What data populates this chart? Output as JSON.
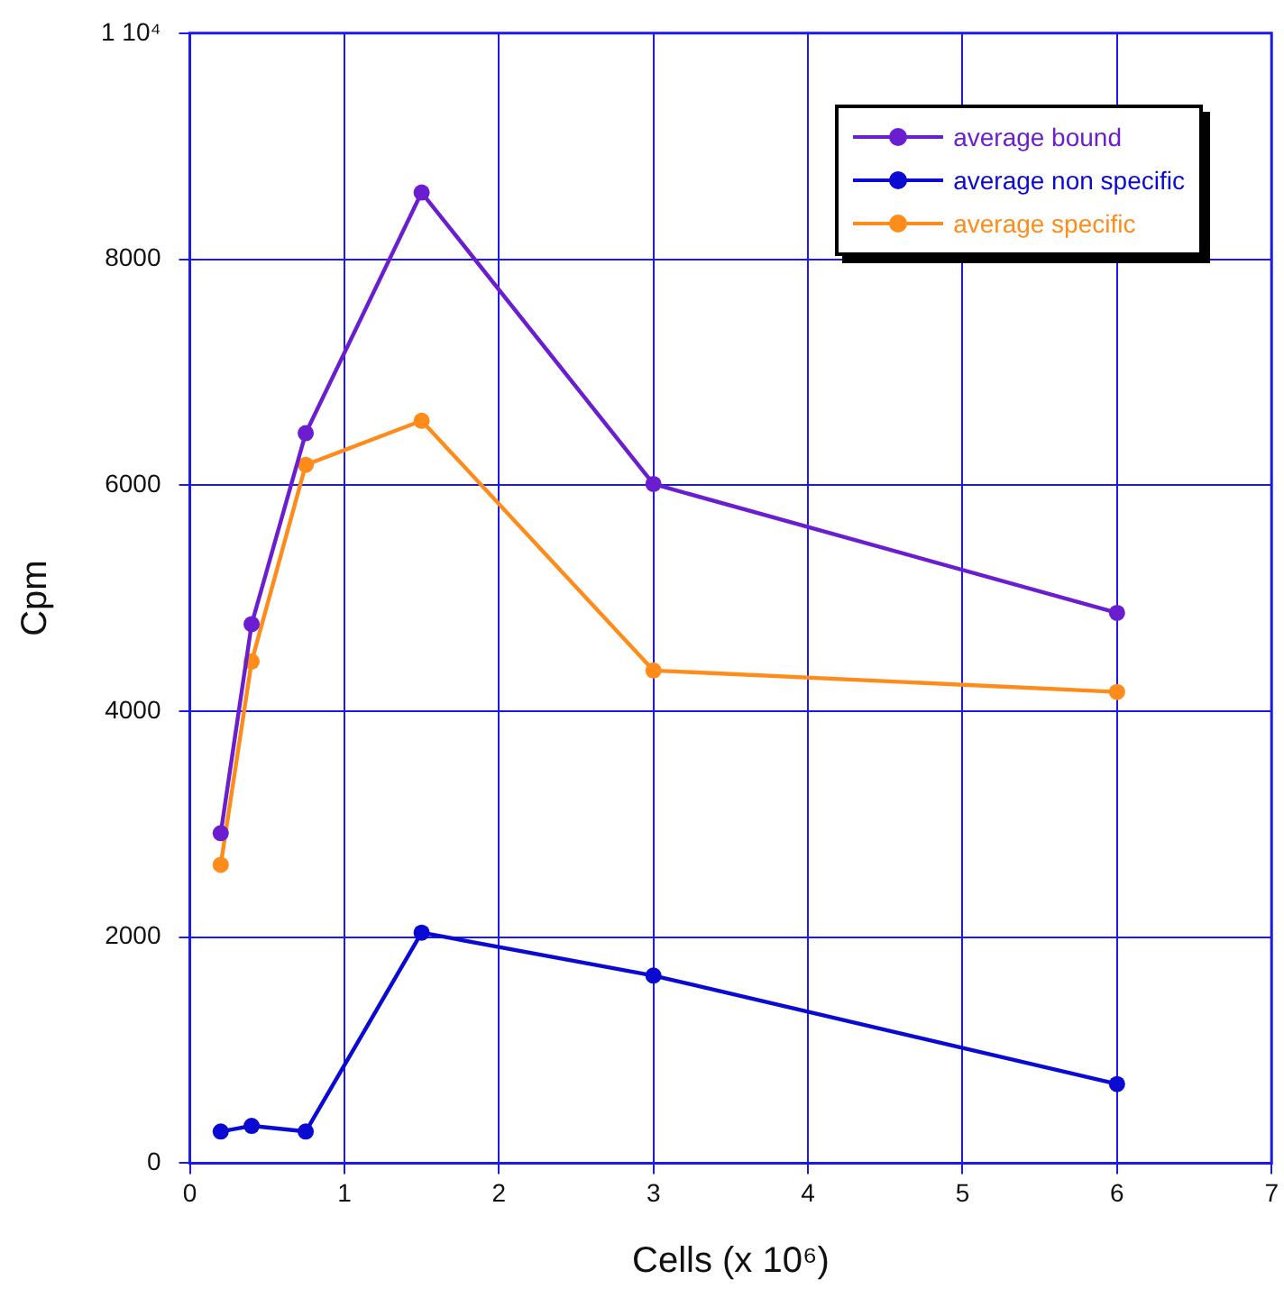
{
  "chart_data": {
    "type": "line",
    "xlabel": "Cells (x 10⁶)",
    "ylabel": "Cpm",
    "x": [
      0.2,
      0.4,
      0.75,
      1.5,
      3,
      6
    ],
    "series": [
      {
        "name": "average bound",
        "color": "#6a1ed0",
        "values": [
          2920,
          4770,
          6460,
          8590,
          6010,
          4870
        ]
      },
      {
        "name": "average non specific",
        "color": "#0a0ad2",
        "values": [
          280,
          330,
          280,
          2040,
          1660,
          700
        ]
      },
      {
        "name": "average specific",
        "color": "#ff8c1a",
        "values": [
          2640,
          4440,
          6180,
          6570,
          4360,
          4170
        ]
      }
    ],
    "xlim": [
      0,
      7
    ],
    "xticks": [
      0,
      1,
      2,
      3,
      4,
      5,
      6,
      7
    ],
    "ylim": [
      0,
      10000
    ],
    "yticks": [
      0,
      2000,
      4000,
      6000,
      8000,
      {
        "value": 10000,
        "label": "1 10⁴"
      }
    ],
    "grid": true,
    "legend": "top right",
    "marker": "circle",
    "line_style": "solid"
  }
}
